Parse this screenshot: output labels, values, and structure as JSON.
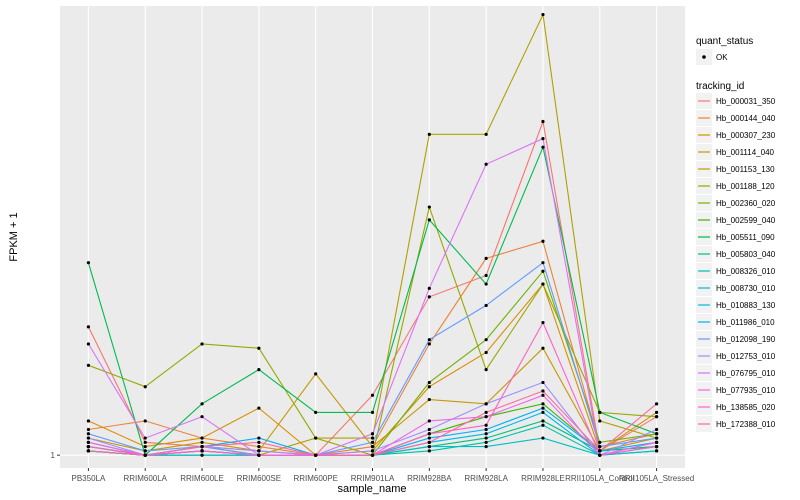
{
  "chart_data": {
    "type": "line",
    "xlabel": "sample_name",
    "ylabel": "FPKM + 1",
    "y_ticks": [
      {
        "value": 1,
        "label": "1"
      }
    ],
    "ylim": [
      0.97,
      2.05
    ],
    "grid": true,
    "legend_position": "right",
    "categories": [
      "PB350LA",
      "RRIM600LA",
      "RRIM600LE",
      "RRIM600SE",
      "RRIM600PE",
      "RRIM901LA",
      "RRIM928BA",
      "RRIM928LA",
      "RRIM928LE",
      "RRII105LA_Control",
      "RRII105LA_Stressed"
    ],
    "shape_legend": {
      "title": "quant_status",
      "entries": [
        {
          "label": "OK",
          "shape": "point"
        }
      ]
    },
    "color_legend_title": "tracking_id",
    "series": [
      {
        "name": "Hb_000031_350",
        "color": "#F8766D",
        "values": [
          1.3,
          1.03,
          1.02,
          1.01,
          1.0,
          1.14,
          1.37,
          1.42,
          1.78,
          1.01,
          1.09
        ]
      },
      {
        "name": "Hb_000144_040",
        "color": "#EC8239",
        "values": [
          1.06,
          1.08,
          1.04,
          1.02,
          1.0,
          1.02,
          1.26,
          1.46,
          1.5,
          1.02,
          1.05
        ]
      },
      {
        "name": "Hb_000307_230",
        "color": "#DB8E00",
        "values": [
          1.08,
          1.02,
          1.04,
          1.11,
          1.0,
          1.01,
          1.16,
          1.24,
          1.4,
          1.01,
          1.1
        ]
      },
      {
        "name": "Hb_001114_040",
        "color": "#C79800",
        "values": [
          1.04,
          1.01,
          1.03,
          1.01,
          1.19,
          1.02,
          1.13,
          1.12,
          1.25,
          1.01,
          1.04
        ]
      },
      {
        "name": "Hb_001153_130",
        "color": "#AFA100",
        "values": [
          1.02,
          1.0,
          1.01,
          1.0,
          1.04,
          1.04,
          1.75,
          1.75,
          2.03,
          1.08,
          1.04
        ]
      },
      {
        "name": "Hb_001188_120",
        "color": "#96A900",
        "values": [
          1.21,
          1.16,
          1.26,
          1.25,
          1.04,
          1.0,
          1.58,
          1.2,
          1.4,
          1.1,
          1.09
        ]
      },
      {
        "name": "Hb_002360_020",
        "color": "#72B000",
        "values": [
          1.02,
          1.0,
          1.01,
          1.0,
          1.0,
          1.0,
          1.17,
          1.27,
          1.43,
          1.03,
          1.05
        ]
      },
      {
        "name": "Hb_002599_040",
        "color": "#3BB600",
        "values": [
          1.01,
          1.0,
          1.02,
          1.0,
          1.0,
          1.0,
          1.05,
          1.09,
          1.12,
          1.01,
          1.02
        ]
      },
      {
        "name": "Hb_005511_090",
        "color": "#00BB4E",
        "values": [
          1.45,
          1.0,
          1.12,
          1.2,
          1.1,
          1.1,
          1.55,
          1.4,
          1.72,
          1.1,
          1.05
        ]
      },
      {
        "name": "Hb_005803_040",
        "color": "#00BF7D",
        "values": [
          1.01,
          1.0,
          1.01,
          1.0,
          1.0,
          1.0,
          1.02,
          1.04,
          1.08,
          1.01,
          1.02
        ]
      },
      {
        "name": "Hb_008326_010",
        "color": "#00C1A3",
        "values": [
          1.01,
          1.0,
          1.0,
          1.0,
          1.0,
          1.0,
          1.01,
          1.03,
          1.07,
          1.0,
          1.01
        ]
      },
      {
        "name": "Hb_008730_010",
        "color": "#00BFC4",
        "values": [
          1.01,
          1.0,
          1.0,
          1.0,
          1.0,
          1.0,
          1.02,
          1.02,
          1.04,
          1.0,
          1.01
        ]
      },
      {
        "name": "Hb_010883_130",
        "color": "#00B9E3",
        "values": [
          1.02,
          1.0,
          1.01,
          1.0,
          1.0,
          1.0,
          1.03,
          1.05,
          1.1,
          1.0,
          1.02
        ]
      },
      {
        "name": "Hb_011986_010",
        "color": "#00AEFA",
        "values": [
          1.03,
          1.0,
          1.02,
          1.04,
          1.0,
          1.0,
          1.04,
          1.06,
          1.11,
          1.01,
          1.03
        ]
      },
      {
        "name": "Hb_012098_190",
        "color": "#619CFF",
        "values": [
          1.05,
          1.01,
          1.02,
          1.0,
          1.0,
          1.03,
          1.27,
          1.35,
          1.45,
          1.02,
          1.04
        ]
      },
      {
        "name": "Hb_012753_010",
        "color": "#9F8CFF",
        "values": [
          1.04,
          1.0,
          1.02,
          1.01,
          1.0,
          1.01,
          1.06,
          1.12,
          1.17,
          1.0,
          1.06
        ]
      },
      {
        "name": "Hb_076795_010",
        "color": "#DB72FB",
        "values": [
          1.26,
          1.04,
          1.09,
          1.0,
          1.0,
          1.05,
          1.39,
          1.68,
          1.74,
          1.0,
          1.03
        ]
      },
      {
        "name": "Hb_077935_010",
        "color": "#F166E8",
        "values": [
          1.03,
          1.0,
          1.01,
          1.0,
          1.0,
          1.0,
          1.08,
          1.09,
          1.14,
          1.0,
          1.03
        ]
      },
      {
        "name": "Hb_138585_020",
        "color": "#FF61C9",
        "values": [
          1.02,
          1.0,
          1.01,
          1.0,
          1.0,
          1.0,
          1.05,
          1.07,
          1.31,
          1.0,
          1.02
        ]
      },
      {
        "name": "Hb_172388_010",
        "color": "#FF68A1",
        "values": [
          1.01,
          1.0,
          1.02,
          1.03,
          1.0,
          1.0,
          1.03,
          1.1,
          1.15,
          1.01,
          1.12
        ]
      }
    ]
  }
}
